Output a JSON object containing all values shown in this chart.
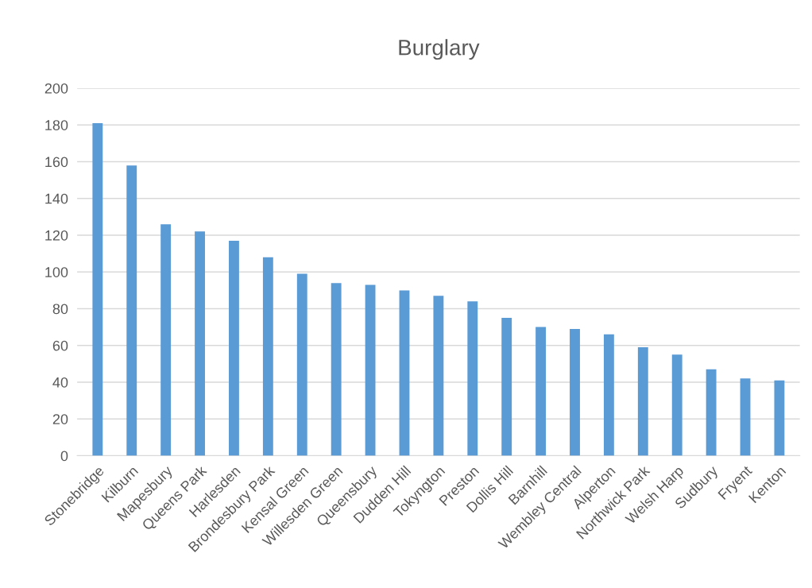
{
  "chart_data": {
    "type": "bar",
    "title": "Burglary",
    "categories": [
      "Stonebridge",
      "Kilburn",
      "Mapesbury",
      "Queens Park",
      "Harlesden",
      "Brondesbury Park",
      "Kensal Green",
      "Willesden Green",
      "Queensbury",
      "Dudden Hill",
      "Tokyngton",
      "Preston",
      "Dollis Hill",
      "Barnhill",
      "Wembley Central",
      "Alperton",
      "Northwick Park",
      "Welsh Harp",
      "Sudbury",
      "Fryent",
      "Kenton"
    ],
    "values": [
      181,
      158,
      126,
      122,
      117,
      108,
      99,
      94,
      93,
      90,
      87,
      84,
      75,
      70,
      69,
      66,
      59,
      55,
      47,
      42,
      41
    ],
    "color": "#5b9bd5",
    "ylim": [
      0,
      200
    ],
    "yticks": [
      0,
      20,
      40,
      60,
      80,
      100,
      120,
      140,
      160,
      180,
      200
    ],
    "grid": "y"
  }
}
